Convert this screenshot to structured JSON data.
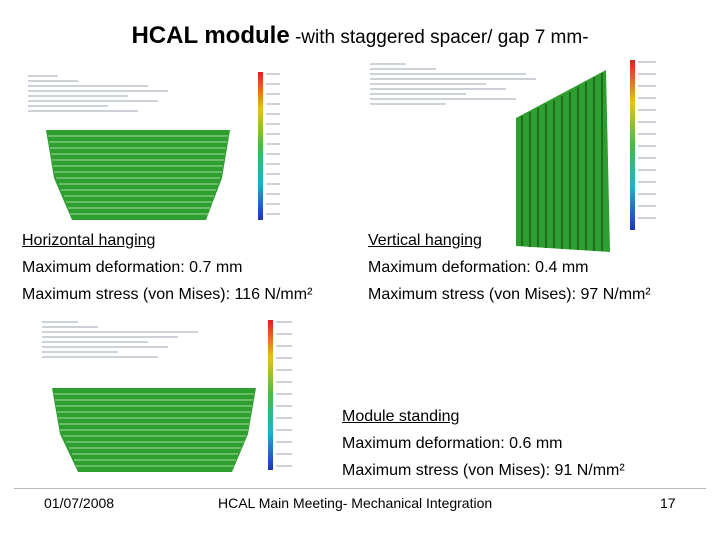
{
  "slide": {
    "title_bold": "HCAL module",
    "title_rest": " -with staggered spacer/ gap 7 mm-"
  },
  "panels": {
    "horizontal": {
      "heading": "Horizontal hanging",
      "deformation": "Maximum deformation: 0.7 mm",
      "stress": "Maximum stress (von Mises): 116 N/mm²"
    },
    "vertical": {
      "heading": "Vertical hanging",
      "deformation": "Maximum deformation: 0.4 mm",
      "stress": "Maximum stress (von Mises): 97 N/mm²"
    },
    "standing": {
      "heading": "Module standing",
      "deformation": "Maximum deformation:  0.6 mm",
      "stress": "Maximum stress (von Mises): 91 N/mm²"
    }
  },
  "footer": {
    "date": "01/07/2008",
    "meeting": "HCAL Main Meeting- Mechanical Integration",
    "page": "17"
  },
  "colors": {
    "mesh_green": "#2e9e2e",
    "mesh_dark": "#1c6e1c"
  }
}
